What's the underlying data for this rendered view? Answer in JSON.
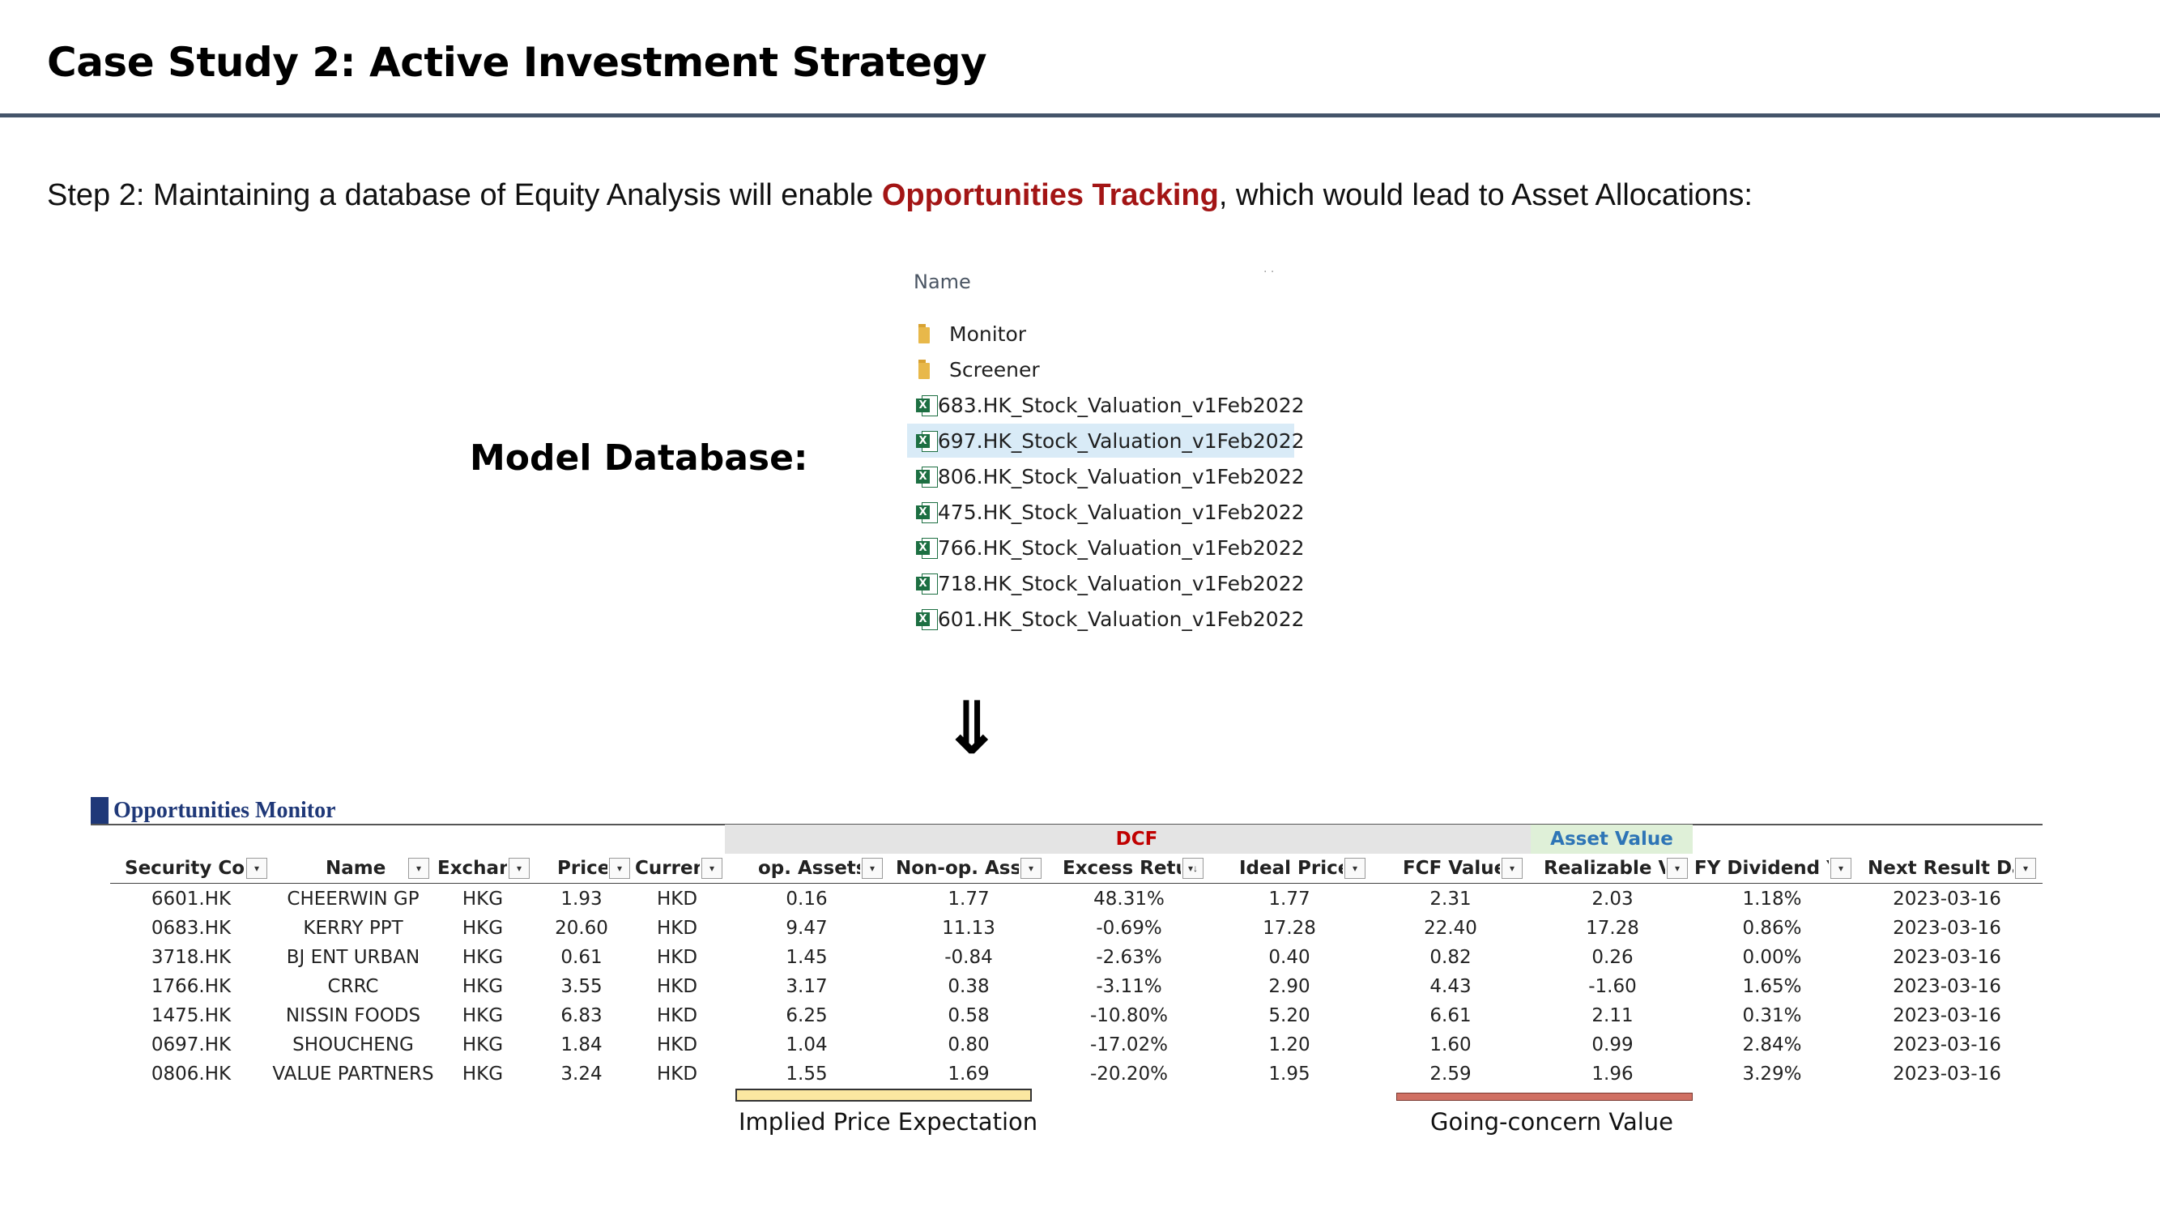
{
  "title": "Case Study 2: Active Investment Strategy",
  "step": {
    "prefix": "Step 2: Maintaining a database of Equity Analysis will enable ",
    "highlight": "Opportunities Tracking",
    "suffix": ", which would lead to Asset Allocations:"
  },
  "model_label": "Model Database:",
  "explorer": {
    "column_header": "Name",
    "items": [
      {
        "name": "Monitor",
        "type": "folder"
      },
      {
        "name": "Screener",
        "type": "folder"
      },
      {
        "name": "0683.HK_Stock_Valuation_v1Feb2022",
        "type": "excel"
      },
      {
        "name": "0697.HK_Stock_Valuation_v1Feb2022",
        "type": "excel",
        "selected": true
      },
      {
        "name": "0806.HK_Stock_Valuation_v1Feb2022",
        "type": "excel"
      },
      {
        "name": "1475.HK_Stock_Valuation_v1Feb2022",
        "type": "excel"
      },
      {
        "name": "1766.HK_Stock_Valuation_v1Feb2022",
        "type": "excel"
      },
      {
        "name": "3718.HK_Stock_Valuation_v1Feb2022",
        "type": "excel"
      },
      {
        "name": "6601.HK_Stock_Valuation_v1Feb2022",
        "type": "excel"
      }
    ]
  },
  "arrow": "⇓",
  "monitor": {
    "title": "Opportunities Monitor",
    "group_dcf": "DCF",
    "group_asset": "Asset Value",
    "headers": [
      "Security Cod",
      "Name",
      "Exchan",
      "Price",
      "Curren",
      "op. Assets",
      "Non-op. Asse",
      "Excess Retur",
      "Ideal Price",
      "FCF Value",
      "Realizable VF",
      "FY Dividend Yi",
      "Next Result Dat"
    ],
    "rows": [
      [
        "6601.HK",
        "CHEERWIN GP",
        "HKG",
        "1.93",
        "HKD",
        "0.16",
        "1.77",
        "48.31%",
        "1.77",
        "2.31",
        "2.03",
        "1.18%",
        "2023-03-16"
      ],
      [
        "0683.HK",
        "KERRY PPT",
        "HKG",
        "20.60",
        "HKD",
        "9.47",
        "11.13",
        "-0.69%",
        "17.28",
        "22.40",
        "17.28",
        "0.86%",
        "2023-03-16"
      ],
      [
        "3718.HK",
        "BJ ENT URBAN",
        "HKG",
        "0.61",
        "HKD",
        "1.45",
        "-0.84",
        "-2.63%",
        "0.40",
        "0.82",
        "0.26",
        "0.00%",
        "2023-03-16"
      ],
      [
        "1766.HK",
        "CRRC",
        "HKG",
        "3.55",
        "HKD",
        "3.17",
        "0.38",
        "-3.11%",
        "2.90",
        "4.43",
        "-1.60",
        "1.65%",
        "2023-03-16"
      ],
      [
        "1475.HK",
        "NISSIN FOODS",
        "HKG",
        "6.83",
        "HKD",
        "6.25",
        "0.58",
        "-10.80%",
        "5.20",
        "6.61",
        "2.11",
        "0.31%",
        "2023-03-16"
      ],
      [
        "0697.HK",
        "SHOUCHENG",
        "HKG",
        "1.84",
        "HKD",
        "1.04",
        "0.80",
        "-17.02%",
        "1.20",
        "1.60",
        "0.99",
        "2.84%",
        "2023-03-16"
      ],
      [
        "0806.HK",
        "VALUE PARTNERS",
        "HKG",
        "3.24",
        "HKD",
        "1.55",
        "1.69",
        "-20.20%",
        "1.95",
        "2.59",
        "1.96",
        "3.29%",
        "2023-03-16"
      ]
    ],
    "caption_left": "Implied Price Expectation",
    "caption_right": "Going-concern Value"
  }
}
